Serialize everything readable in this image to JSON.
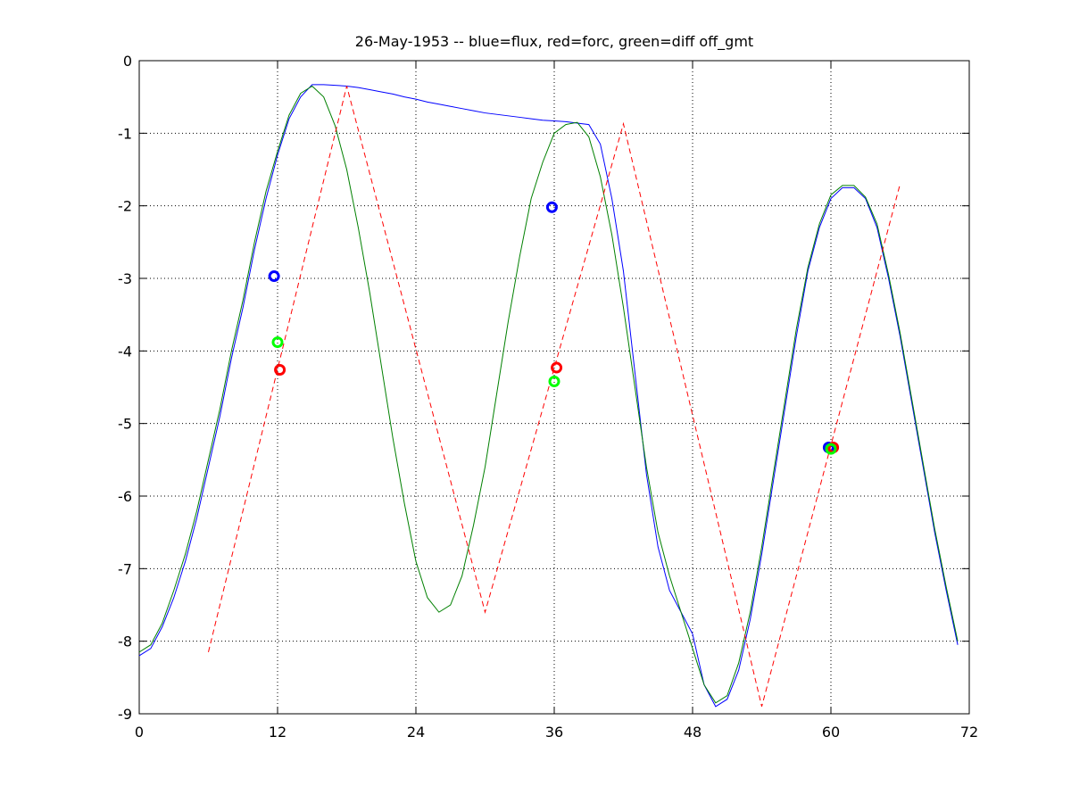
{
  "chart_data": {
    "type": "line",
    "title": "26-May-1953 -- blue=flux, red=forc, green=diff off_gmt",
    "xlim": [
      0,
      72
    ],
    "xticks": [
      0,
      12,
      24,
      36,
      48,
      60,
      72
    ],
    "ylim": [
      -9,
      0
    ],
    "yticks": [
      0,
      -1,
      -2,
      -3,
      -4,
      -5,
      -6,
      -7,
      -8,
      -9
    ],
    "grid": true,
    "series": [
      {
        "color": "#0000ff",
        "style": "solid",
        "x": [
          0,
          1,
          2,
          3,
          4,
          5,
          6,
          7,
          8,
          9,
          10,
          11,
          12,
          13,
          14,
          15,
          16,
          17,
          18,
          19,
          20,
          21,
          22,
          23,
          24,
          25,
          26,
          27,
          28,
          29,
          30,
          31,
          32,
          33,
          34,
          35,
          36,
          37,
          38,
          39,
          40,
          41,
          42,
          43,
          44,
          45,
          46,
          47,
          48,
          49,
          50,
          51,
          52,
          53,
          54,
          55,
          56,
          57,
          58,
          59,
          60,
          61,
          62,
          63,
          64,
          65,
          66,
          67,
          68,
          69,
          70,
          71
        ],
        "values": [
          -8.2,
          -8.1,
          -7.8,
          -7.4,
          -6.9,
          -6.3,
          -5.6,
          -4.9,
          -4.1,
          -3.4,
          -2.6,
          -1.9,
          -1.3,
          -0.8,
          -0.5,
          -0.33,
          -0.33,
          -0.34,
          -0.35,
          -0.37,
          -0.4,
          -0.43,
          -0.46,
          -0.5,
          -0.53,
          -0.57,
          -0.6,
          -0.63,
          -0.66,
          -0.69,
          -0.72,
          -0.74,
          -0.76,
          -0.78,
          -0.8,
          -0.82,
          -0.83,
          -0.84,
          -0.86,
          -0.88,
          -1.15,
          -1.9,
          -2.9,
          -4.3,
          -5.7,
          -6.7,
          -7.3,
          -7.6,
          -7.9,
          -8.6,
          -8.9,
          -8.8,
          -8.4,
          -7.7,
          -6.8,
          -5.8,
          -4.8,
          -3.8,
          -2.9,
          -2.3,
          -1.9,
          -1.75,
          -1.75,
          -1.9,
          -2.3,
          -3.0,
          -3.8,
          -4.7,
          -5.6,
          -6.5,
          -7.3,
          -8.05
        ]
      },
      {
        "color": "#008000",
        "style": "solid",
        "x": [
          0,
          1,
          2,
          3,
          4,
          5,
          6,
          7,
          8,
          9,
          10,
          11,
          12,
          13,
          14,
          15,
          16,
          17,
          18,
          19,
          20,
          21,
          22,
          23,
          24,
          25,
          26,
          27,
          28,
          29,
          30,
          31,
          32,
          33,
          34,
          35,
          36,
          37,
          38,
          39,
          40,
          41,
          42,
          43,
          44,
          45,
          46,
          47,
          48,
          49,
          50,
          51,
          52,
          53,
          54,
          55,
          56,
          57,
          58,
          59,
          60,
          61,
          62,
          63,
          64,
          65,
          66,
          67,
          68,
          69,
          70,
          71
        ],
        "values": [
          -8.15,
          -8.05,
          -7.75,
          -7.3,
          -6.8,
          -6.2,
          -5.5,
          -4.8,
          -4.0,
          -3.3,
          -2.5,
          -1.8,
          -1.25,
          -0.75,
          -0.45,
          -0.35,
          -0.5,
          -0.9,
          -1.5,
          -2.3,
          -3.2,
          -4.2,
          -5.2,
          -6.1,
          -6.9,
          -7.4,
          -7.6,
          -7.5,
          -7.1,
          -6.4,
          -5.6,
          -4.6,
          -3.6,
          -2.7,
          -1.9,
          -1.4,
          -1.0,
          -0.88,
          -0.85,
          -1.05,
          -1.6,
          -2.4,
          -3.4,
          -4.5,
          -5.6,
          -6.5,
          -7.1,
          -7.6,
          -8.1,
          -8.6,
          -8.85,
          -8.75,
          -8.3,
          -7.6,
          -6.7,
          -5.7,
          -4.7,
          -3.7,
          -2.85,
          -2.25,
          -1.85,
          -1.72,
          -1.72,
          -1.88,
          -2.25,
          -2.95,
          -3.75,
          -4.65,
          -5.55,
          -6.45,
          -7.25,
          -8.0
        ]
      },
      {
        "color": "#ff0000",
        "style": "dashed",
        "x": [
          6,
          18,
          30,
          42,
          54,
          66
        ],
        "values": [
          -8.15,
          -0.35,
          -7.6,
          -0.87,
          -8.9,
          -1.7
        ]
      }
    ],
    "markers": [
      {
        "color": "#0000ff",
        "x": [
          11.7,
          35.8,
          59.8
        ],
        "values": [
          -2.97,
          -2.02,
          -5.33
        ]
      },
      {
        "color": "#ff0000",
        "x": [
          12.2,
          36.2,
          60.2
        ],
        "values": [
          -4.26,
          -4.23,
          -5.33
        ]
      },
      {
        "color": "#00ff00",
        "x": [
          12,
          36,
          60
        ],
        "values": [
          -3.88,
          -4.42,
          -5.35
        ]
      }
    ]
  }
}
